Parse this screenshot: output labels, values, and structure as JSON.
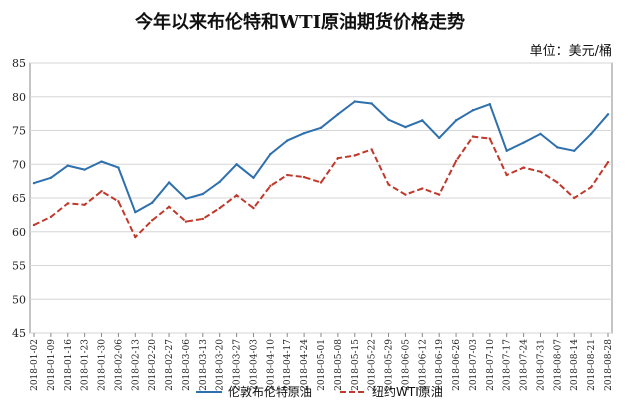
{
  "chart_data": {
    "type": "line",
    "title": "今年以来布伦特和WTI原油期货价格走势",
    "unit_label": "单位：美元/桶",
    "xlabel": "",
    "ylabel": "",
    "ylim": [
      45,
      85
    ],
    "yticks": [
      45,
      50,
      55,
      60,
      65,
      70,
      75,
      80,
      85
    ],
    "grid": true,
    "legend_position": "bottom",
    "x": [
      "2018-01-02",
      "2018-01-09",
      "2018-01-16",
      "2018-01-23",
      "2018-01-30",
      "2018-02-06",
      "2018-02-13",
      "2018-02-20",
      "2018-02-27",
      "2018-03-06",
      "2018-03-13",
      "2018-03-20",
      "2018-03-27",
      "2018-04-03",
      "2018-04-10",
      "2018-04-17",
      "2018-04-24",
      "2018-05-01",
      "2018-05-08",
      "2018-05-15",
      "2018-05-22",
      "2018-05-29",
      "2018-06-05",
      "2018-06-12",
      "2018-06-19",
      "2018-06-26",
      "2018-07-03",
      "2018-07-10",
      "2018-07-17",
      "2018-07-24",
      "2018-07-31",
      "2018-08-07",
      "2018-08-14",
      "2018-08-21",
      "2018-08-28"
    ],
    "series": [
      {
        "name": "伦敦布伦特原油",
        "color": "#2e6fad",
        "style": "solid",
        "values": [
          67.2,
          68.0,
          69.8,
          69.2,
          70.4,
          69.5,
          62.9,
          64.3,
          67.3,
          64.9,
          65.6,
          67.4,
          70.0,
          68.0,
          71.5,
          73.5,
          74.6,
          75.4,
          77.4,
          79.3,
          79.0,
          76.6,
          75.5,
          76.5,
          73.9,
          76.5,
          78.0,
          78.9,
          72.0,
          73.2,
          74.5,
          72.5,
          72.0,
          74.5,
          77.4
        ]
      },
      {
        "name": "纽约WTI原油",
        "color": "#c0392b",
        "style": "dashed",
        "values": [
          61.0,
          62.2,
          64.2,
          64.0,
          66.0,
          64.5,
          59.2,
          61.7,
          63.7,
          61.5,
          61.9,
          63.5,
          65.4,
          63.5,
          66.8,
          68.4,
          68.1,
          67.3,
          70.9,
          71.3,
          72.2,
          67.0,
          65.5,
          66.4,
          65.5,
          70.5,
          74.1,
          73.8,
          68.4,
          69.5,
          68.9,
          67.3,
          65.0,
          66.6,
          70.3
        ]
      }
    ]
  }
}
